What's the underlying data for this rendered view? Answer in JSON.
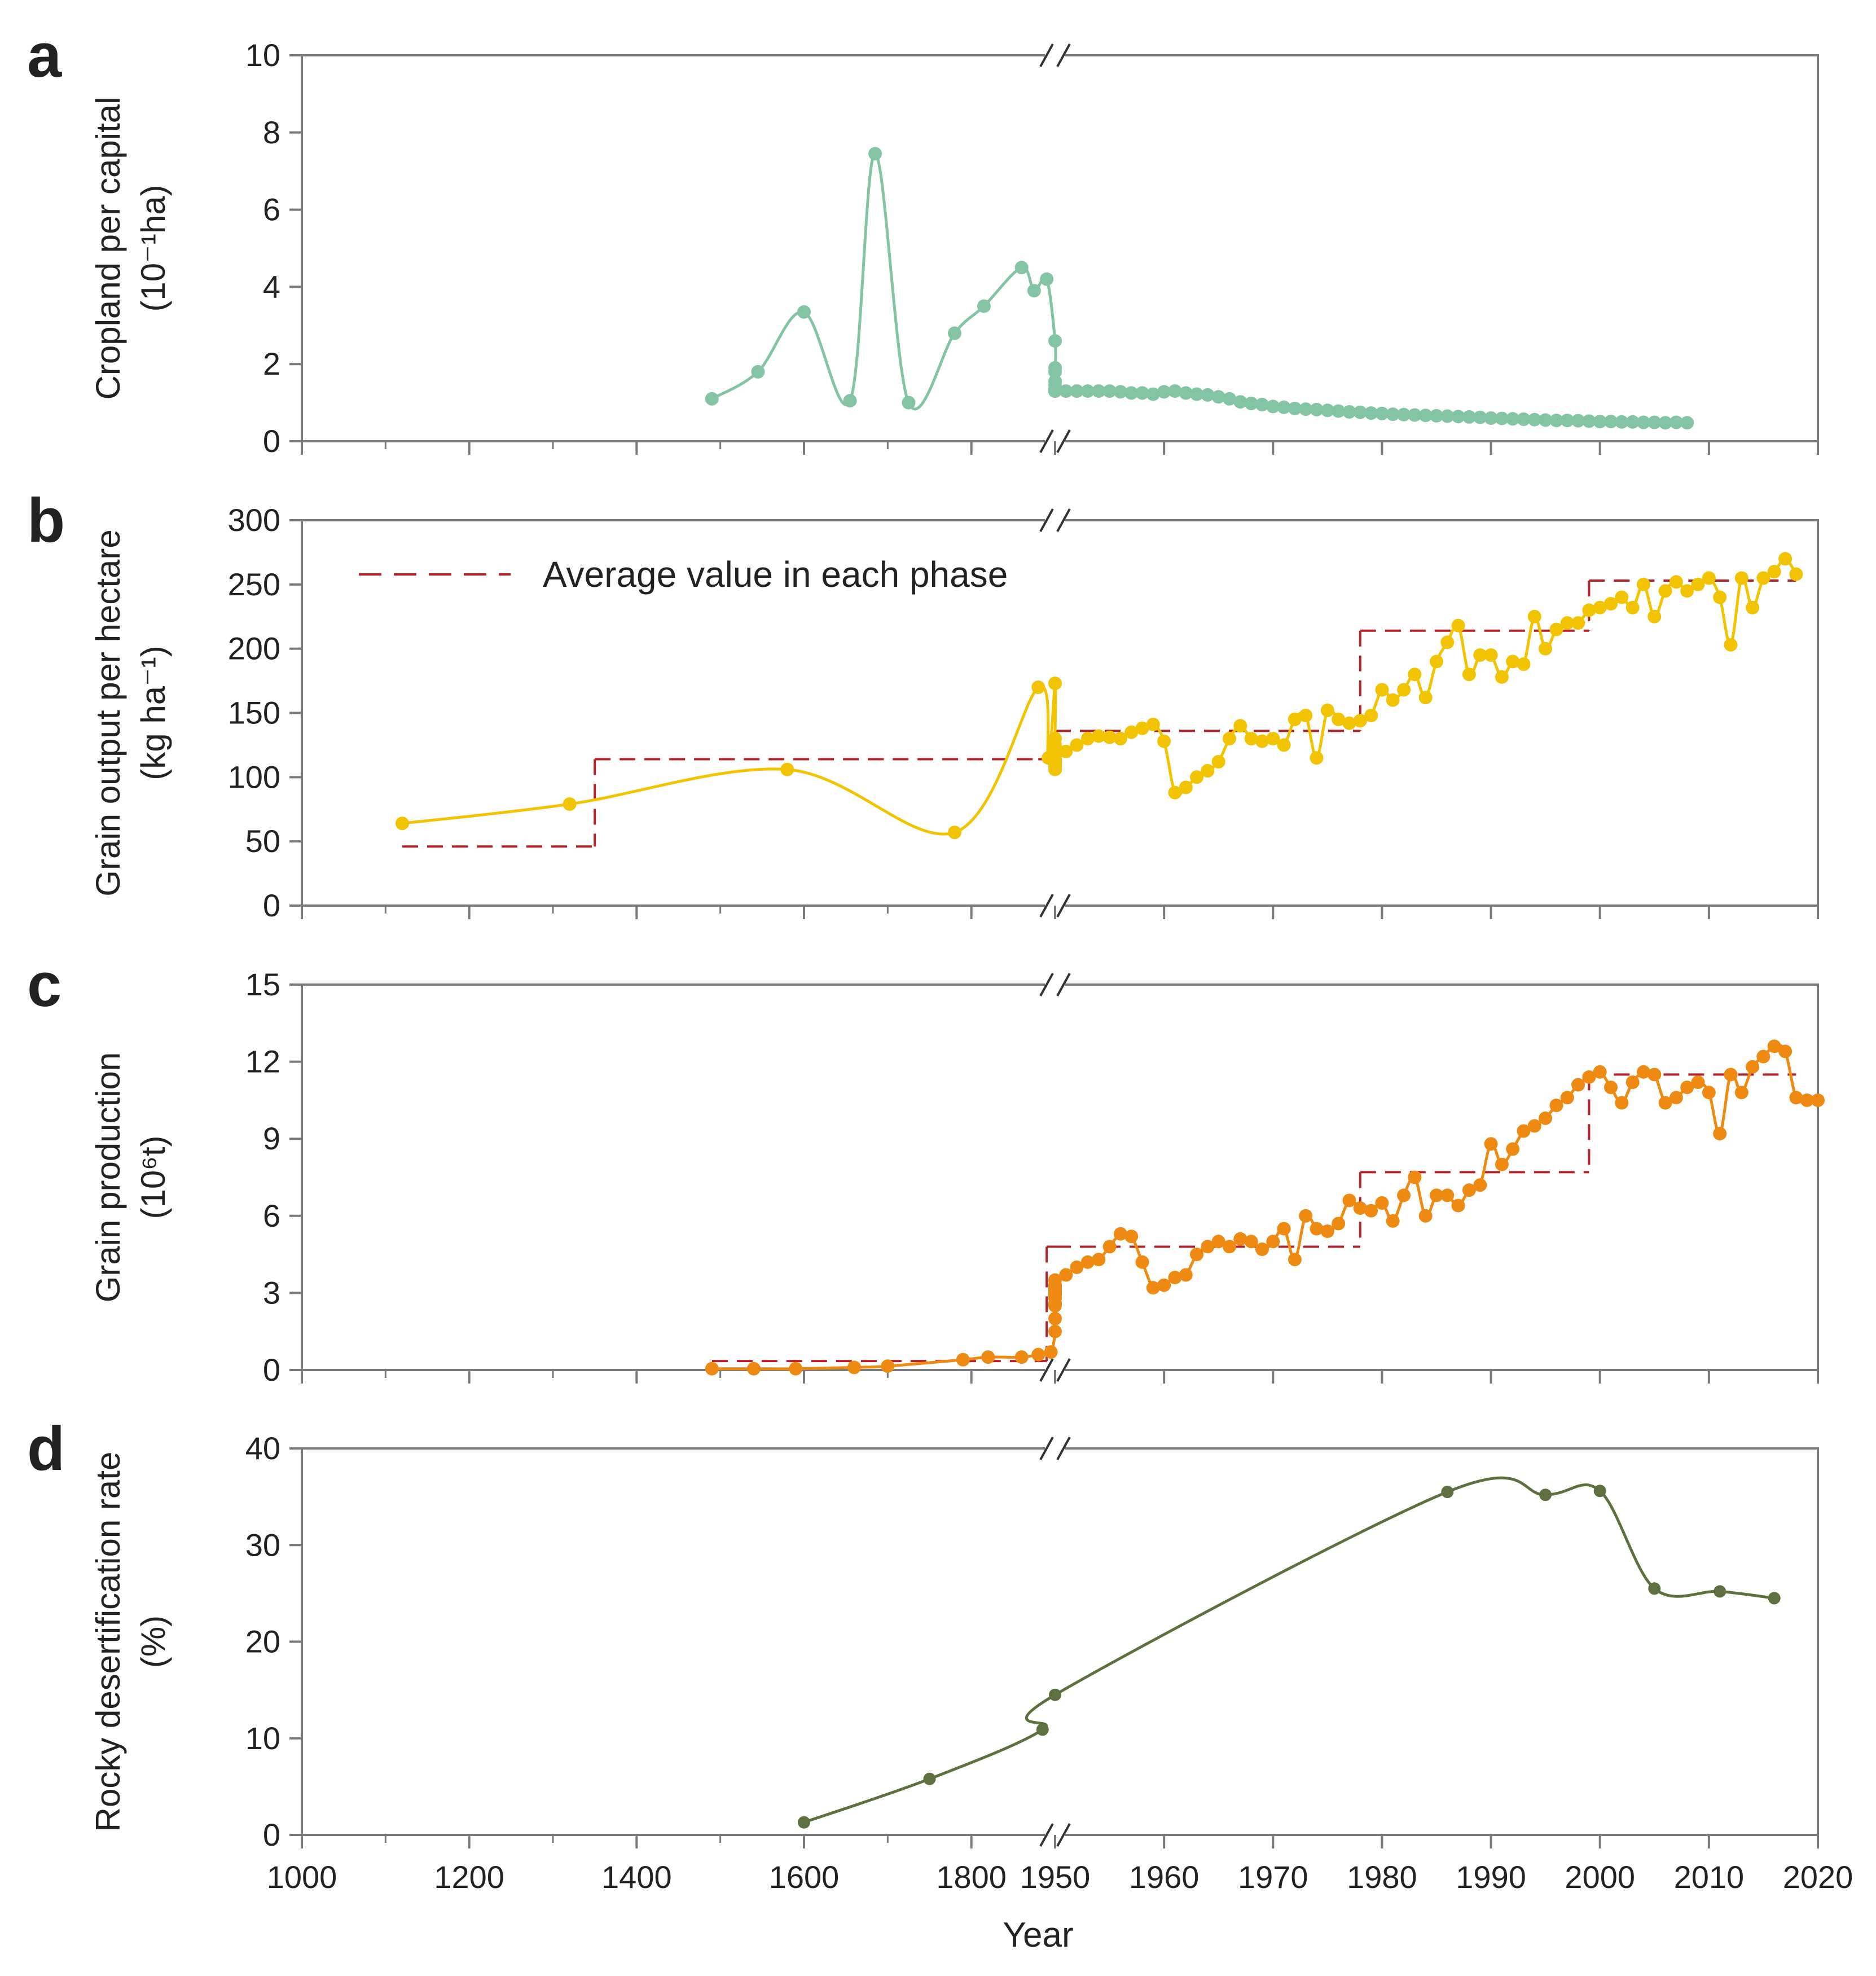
{
  "shared_axis": {
    "xlabel": "Year",
    "x_tick_labels_left": [
      "1000",
      "1200",
      "1400",
      "1600",
      "1800"
    ],
    "x_tick_labels_right": [
      "1950",
      "1960",
      "1970",
      "1980",
      "1990",
      "2000",
      "2010",
      "2020"
    ],
    "x_break_at": "1900/1950"
  },
  "legend": {
    "label": "Average value in each phase",
    "color": "#b5232a"
  },
  "chart_data": [
    {
      "panel": "a",
      "type": "line",
      "ylabel_line1": "Cropland per capital",
      "ylabel_line2": "(10⁻¹ha)",
      "ylim": [
        0,
        10
      ],
      "yticks": [
        "0",
        "2",
        "4",
        "6",
        "8",
        "10"
      ],
      "color": "#82c4a4",
      "x": [
        1490,
        1545,
        1600,
        1655,
        1685,
        1725,
        1780,
        1815,
        1860,
        1875,
        1890,
        1904,
        1905,
        1906,
        1907,
        1908,
        1909,
        1948,
        1949,
        1950,
        1951,
        1952,
        1953,
        1954,
        1955,
        1956,
        1957,
        1958,
        1959,
        1960,
        1961,
        1962,
        1963,
        1964,
        1965,
        1966,
        1967,
        1968,
        1969,
        1970,
        1971,
        1972,
        1973,
        1974,
        1975,
        1976,
        1977,
        1978,
        1979,
        1980,
        1981,
        1982,
        1983,
        1984,
        1985,
        1986,
        1987,
        1988,
        1989,
        1990,
        1991,
        1992,
        1993,
        1994,
        1995,
        1996,
        1997,
        1998,
        1999,
        2000,
        2001,
        2002,
        2003,
        2004,
        2005,
        2006,
        2007,
        2008
      ],
      "values": [
        1.1,
        1.8,
        3.35,
        1.05,
        7.45,
        1.0,
        2.8,
        3.5,
        4.5,
        3.9,
        4.2,
        2.6,
        1.9,
        1.8,
        1.55,
        1.45,
        1.35,
        1.3,
        1.3,
        1.3,
        1.3,
        1.3,
        1.3,
        1.3,
        1.3,
        1.28,
        1.25,
        1.25,
        1.22,
        1.28,
        1.3,
        1.25,
        1.22,
        1.2,
        1.15,
        1.1,
        1.02,
        0.98,
        0.95,
        0.9,
        0.88,
        0.85,
        0.83,
        0.82,
        0.8,
        0.78,
        0.76,
        0.75,
        0.73,
        0.72,
        0.7,
        0.69,
        0.68,
        0.67,
        0.66,
        0.65,
        0.64,
        0.63,
        0.62,
        0.6,
        0.59,
        0.58,
        0.57,
        0.56,
        0.55,
        0.54,
        0.54,
        0.53,
        0.52,
        0.51,
        0.51,
        0.5,
        0.5,
        0.49,
        0.49,
        0.48,
        0.49,
        0.48
      ]
    },
    {
      "panel": "b",
      "type": "line",
      "ylabel_line1": "Grain output per hectare",
      "ylabel_line2": "(kg ha⁻¹)",
      "ylim": [
        0,
        300
      ],
      "yticks": [
        "0",
        "50",
        "100",
        "150",
        "200",
        "250",
        "300"
      ],
      "color": "#f2c300",
      "x": [
        1120,
        1320,
        1580,
        1780,
        1880,
        1892,
        1903,
        1904,
        1905,
        1906,
        1907,
        1908,
        1909,
        1910,
        1911,
        1912,
        1913,
        1914,
        1915,
        1916,
        1917,
        1918,
        1919,
        1948,
        1949,
        1950,
        1951,
        1952,
        1953,
        1954,
        1955,
        1956,
        1957,
        1958,
        1959,
        1960,
        1961,
        1962,
        1963,
        1964,
        1965,
        1966,
        1967,
        1968,
        1969,
        1970,
        1971,
        1972,
        1973,
        1974,
        1975,
        1976,
        1977,
        1978,
        1979,
        1980,
        1981,
        1982,
        1983,
        1984,
        1985,
        1986,
        1987,
        1988,
        1989,
        1990,
        1991,
        1992,
        1993,
        1994,
        1995,
        1996,
        1997,
        1998,
        1999,
        2000,
        2001,
        2002,
        2003,
        2004,
        2005,
        2006,
        2007,
        2008,
        2009,
        2010,
        2011,
        2012,
        2013,
        2014,
        2015,
        2016,
        2017,
        2018
      ],
      "values": [
        64,
        79,
        106,
        57,
        170,
        115,
        173,
        130,
        120,
        125,
        118,
        112,
        120,
        110,
        115,
        108,
        118,
        110,
        112,
        106,
        120,
        112,
        115,
        108,
        112,
        115,
        120,
        125,
        130,
        132,
        131,
        130,
        135,
        138,
        141,
        128,
        88,
        92,
        100,
        105,
        112,
        130,
        140,
        130,
        128,
        130,
        125,
        145,
        148,
        115,
        152,
        145,
        142,
        144,
        148,
        168,
        160,
        168,
        180,
        162,
        190,
        205,
        218,
        180,
        195,
        195,
        178,
        190,
        188,
        225,
        200,
        215,
        220,
        220,
        230,
        232,
        235,
        240,
        232,
        250,
        225,
        245,
        252,
        245,
        250,
        255,
        240,
        203,
        255,
        232,
        255,
        260,
        270,
        258
      ]
    },
    {
      "panel": "c",
      "type": "line",
      "ylabel_line1": "Grain production",
      "ylabel_line2": "(10⁶t)",
      "ylim": [
        0,
        15
      ],
      "yticks": [
        "0",
        "3",
        "6",
        "9",
        "12",
        "15"
      ],
      "color": "#ee8a12",
      "x": [
        1490,
        1540,
        1590,
        1660,
        1700,
        1790,
        1820,
        1860,
        1880,
        1895,
        1906,
        1907,
        1908,
        1909,
        1910,
        1911,
        1912,
        1913,
        1914,
        1915,
        1916,
        1917,
        1918,
        1919,
        1948,
        1949,
        1950,
        1951,
        1952,
        1953,
        1954,
        1955,
        1956,
        1957,
        1958,
        1959,
        1960,
        1961,
        1962,
        1963,
        1964,
        1965,
        1966,
        1967,
        1968,
        1969,
        1970,
        1971,
        1972,
        1973,
        1974,
        1975,
        1976,
        1977,
        1978,
        1979,
        1980,
        1981,
        1982,
        1983,
        1984,
        1985,
        1986,
        1987,
        1988,
        1989,
        1990,
        1991,
        1992,
        1993,
        1994,
        1995,
        1996,
        1997,
        1998,
        1999,
        2000,
        2001,
        2002,
        2003,
        2004,
        2005,
        2006,
        2007,
        2008,
        2009,
        2010,
        2011,
        2012,
        2013,
        2014,
        2015,
        2016,
        2017,
        2018,
        2019,
        2020
      ],
      "values": [
        0.05,
        0.05,
        0.05,
        0.1,
        0.15,
        0.4,
        0.5,
        0.5,
        0.6,
        0.7,
        1.5,
        2.0,
        2.6,
        2.9,
        3.1,
        3.3,
        2.8,
        3.0,
        2.5,
        3.2,
        3.0,
        2.8,
        3.1,
        3.3,
        3.0,
        3.2,
        3.5,
        3.7,
        4.0,
        4.2,
        4.3,
        4.8,
        5.3,
        5.2,
        4.2,
        3.2,
        3.3,
        3.6,
        3.7,
        4.5,
        4.8,
        5.0,
        4.8,
        5.1,
        5.0,
        4.7,
        5.0,
        5.5,
        4.3,
        6.0,
        5.5,
        5.4,
        5.7,
        6.6,
        6.3,
        6.2,
        6.5,
        5.8,
        6.8,
        7.5,
        6.0,
        6.8,
        6.8,
        6.4,
        7.0,
        7.2,
        8.8,
        8.0,
        8.6,
        9.3,
        9.5,
        9.8,
        10.3,
        10.6,
        11.1,
        11.4,
        11.6,
        11.0,
        10.4,
        11.2,
        11.6,
        11.5,
        10.4,
        10.6,
        11.0,
        11.2,
        10.8,
        9.2,
        11.5,
        10.8,
        11.8,
        12.2,
        12.6,
        12.4,
        10.6,
        10.5,
        10.5
      ]
    },
    {
      "panel": "d",
      "type": "line",
      "ylabel_line1": "Rocky desertification rate",
      "ylabel_line2": "(%)",
      "ylim": [
        0,
        40
      ],
      "yticks": [
        "0",
        "10",
        "20",
        "30",
        "40"
      ],
      "color": "#5f7040",
      "x": [
        1600,
        1750,
        1885,
        1949,
        1986,
        1995,
        2000,
        2005,
        2011,
        2016
      ],
      "values": [
        1.3,
        5.8,
        10.9,
        14.5,
        35.5,
        35.2,
        35.6,
        25.5,
        25.2,
        24.5
      ]
    }
  ],
  "phase_averages": {
    "b": [
      {
        "x1": 1120,
        "x2": 1350,
        "value": 46
      },
      {
        "x1": 1350,
        "x2": 1880,
        "value": 114
      },
      {
        "x1": 1880,
        "x2": 1948,
        "value": 114
      },
      {
        "x1": 1948,
        "x2": 1978,
        "value": 136
      },
      {
        "x1": 1978,
        "x2": 1999,
        "value": 214
      },
      {
        "x1": 1999,
        "x2": 2018,
        "value": 253
      }
    ],
    "c": [
      {
        "x1": 1490,
        "x2": 1890,
        "value": 0.35
      },
      {
        "x1": 1890,
        "x2": 1948,
        "value": 4.8
      },
      {
        "x1": 1948,
        "x2": 1978,
        "value": 4.8
      },
      {
        "x1": 1978,
        "x2": 1999,
        "value": 7.7
      },
      {
        "x1": 1999,
        "x2": 2018,
        "value": 11.5
      }
    ]
  }
}
